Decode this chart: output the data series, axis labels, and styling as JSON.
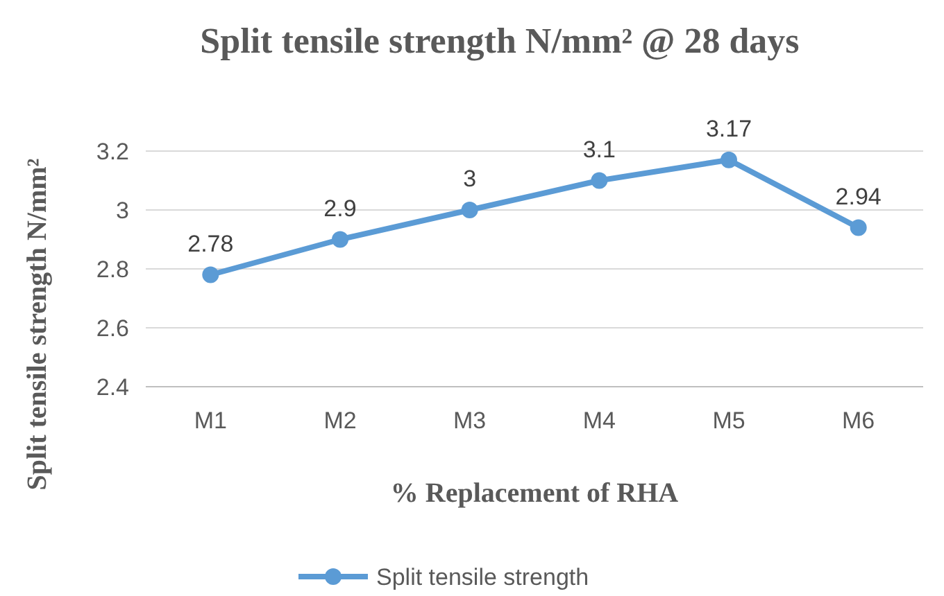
{
  "chart_data": {
    "type": "line",
    "title": "Split tensile strength N/mm² @ 28 days",
    "xlabel": "% Replacement of RHA",
    "ylabel": "Split tensile strength N/mm²",
    "categories": [
      "M1",
      "M2",
      "M3",
      "M4",
      "M5",
      "M6"
    ],
    "series": [
      {
        "name": "Split tensile strength",
        "color": "#5b9bd5",
        "values": [
          2.78,
          2.9,
          3,
          3.1,
          3.17,
          2.94
        ]
      }
    ],
    "ylim": [
      2.4,
      3.2
    ],
    "yticks": [
      2.4,
      2.6,
      2.8,
      3,
      3.2
    ],
    "grid": "y",
    "legend": "bottom",
    "marker": "circle",
    "data_labels": true
  }
}
